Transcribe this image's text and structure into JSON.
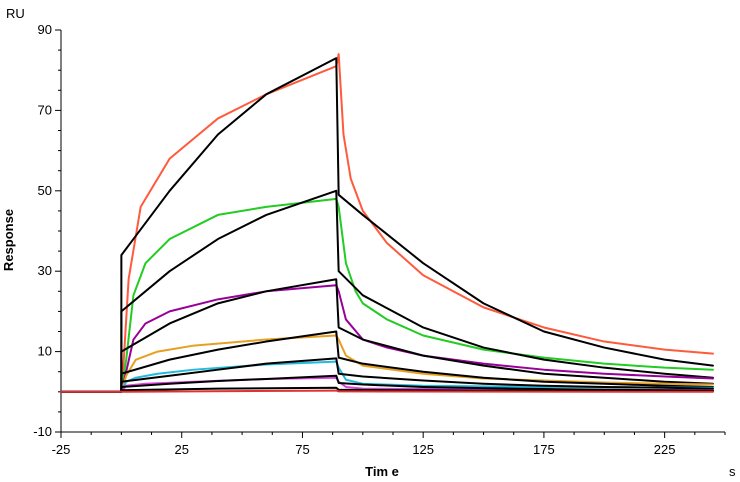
{
  "chart_data": {
    "type": "line",
    "title": "",
    "xlabel": "Tim e",
    "ylabel": "Response",
    "x_unit": "s",
    "y_unit": "RU",
    "xlim": [
      -25,
      250
    ],
    "ylim": [
      -10,
      90
    ],
    "x_ticks": [
      -25,
      25,
      75,
      125,
      175,
      225
    ],
    "y_ticks": [
      -10,
      10,
      30,
      50,
      70,
      90
    ],
    "grid": false,
    "legend": "none",
    "injection_start": 0,
    "injection_end": 90,
    "series": [
      {
        "color": "#ff5a3c",
        "values": [
          [
            -25,
            0
          ],
          [
            0,
            0
          ],
          [
            1,
            8
          ],
          [
            3,
            28
          ],
          [
            8,
            46
          ],
          [
            20,
            58
          ],
          [
            40,
            68
          ],
          [
            60,
            74
          ],
          [
            89,
            81
          ],
          [
            90,
            84
          ],
          [
            92,
            64
          ],
          [
            95,
            53
          ],
          [
            100,
            45
          ],
          [
            110,
            37
          ],
          [
            125,
            29
          ],
          [
            150,
            21
          ],
          [
            175,
            16
          ],
          [
            200,
            12.5
          ],
          [
            225,
            10.5
          ],
          [
            245,
            9.5
          ]
        ]
      },
      {
        "color": "#000000",
        "values": [
          [
            -25,
            0
          ],
          [
            0,
            0
          ],
          [
            0,
            34
          ],
          [
            20,
            50
          ],
          [
            40,
            64
          ],
          [
            60,
            74
          ],
          [
            89,
            83
          ],
          [
            90,
            49
          ],
          [
            100,
            44
          ],
          [
            125,
            32
          ],
          [
            150,
            22
          ],
          [
            175,
            15
          ],
          [
            200,
            11
          ],
          [
            225,
            8
          ],
          [
            245,
            6.5
          ]
        ]
      },
      {
        "color": "#22cc22",
        "values": [
          [
            -25,
            0
          ],
          [
            0,
            0
          ],
          [
            2,
            8
          ],
          [
            5,
            24
          ],
          [
            10,
            32
          ],
          [
            20,
            38
          ],
          [
            40,
            44
          ],
          [
            60,
            46
          ],
          [
            89,
            48
          ],
          [
            90,
            46
          ],
          [
            93,
            32
          ],
          [
            97,
            25
          ],
          [
            100,
            22
          ],
          [
            110,
            18
          ],
          [
            125,
            14
          ],
          [
            150,
            10.5
          ],
          [
            175,
            8.5
          ],
          [
            200,
            7
          ],
          [
            225,
            6
          ],
          [
            245,
            5.5
          ]
        ]
      },
      {
        "color": "#000000",
        "values": [
          [
            -25,
            0
          ],
          [
            0,
            0
          ],
          [
            0,
            20
          ],
          [
            20,
            30
          ],
          [
            40,
            38
          ],
          [
            60,
            44
          ],
          [
            89,
            50
          ],
          [
            90,
            30
          ],
          [
            100,
            24
          ],
          [
            125,
            16
          ],
          [
            150,
            11
          ],
          [
            175,
            8
          ],
          [
            200,
            6
          ],
          [
            225,
            4.5
          ],
          [
            245,
            3.5
          ]
        ]
      },
      {
        "color": "#990099",
        "values": [
          [
            -25,
            0
          ],
          [
            0,
            0
          ],
          [
            2,
            5
          ],
          [
            5,
            13
          ],
          [
            10,
            17
          ],
          [
            20,
            20
          ],
          [
            40,
            23
          ],
          [
            60,
            25
          ],
          [
            89,
            26.5
          ],
          [
            90,
            25
          ],
          [
            93,
            18
          ],
          [
            100,
            13
          ],
          [
            110,
            11
          ],
          [
            125,
            9
          ],
          [
            150,
            7
          ],
          [
            175,
            5.5
          ],
          [
            200,
            4.5
          ],
          [
            225,
            3.8
          ],
          [
            245,
            3.3
          ]
        ]
      },
      {
        "color": "#000000",
        "values": [
          [
            -25,
            0
          ],
          [
            0,
            0
          ],
          [
            0,
            10
          ],
          [
            20,
            17
          ],
          [
            40,
            22
          ],
          [
            60,
            25
          ],
          [
            89,
            28
          ],
          [
            90,
            16
          ],
          [
            100,
            13
          ],
          [
            125,
            9
          ],
          [
            150,
            6.5
          ],
          [
            175,
            4.5
          ],
          [
            200,
            3.5
          ],
          [
            225,
            2.5
          ],
          [
            245,
            2
          ]
        ]
      },
      {
        "color": "#e6a020",
        "values": [
          [
            -25,
            0
          ],
          [
            0,
            0
          ],
          [
            2,
            4
          ],
          [
            6,
            8
          ],
          [
            15,
            10
          ],
          [
            30,
            11.5
          ],
          [
            60,
            13
          ],
          [
            89,
            14
          ],
          [
            90,
            13
          ],
          [
            93,
            9
          ],
          [
            100,
            6.5
          ],
          [
            125,
            4.5
          ],
          [
            150,
            3.3
          ],
          [
            175,
            2.8
          ],
          [
            200,
            2.3
          ],
          [
            225,
            2
          ],
          [
            245,
            1.8
          ]
        ]
      },
      {
        "color": "#000000",
        "values": [
          [
            -25,
            0
          ],
          [
            0,
            0
          ],
          [
            0,
            4.5
          ],
          [
            20,
            8
          ],
          [
            40,
            10.5
          ],
          [
            60,
            12.5
          ],
          [
            89,
            15
          ],
          [
            90,
            8.5
          ],
          [
            100,
            7
          ],
          [
            125,
            5
          ],
          [
            150,
            3.5
          ],
          [
            175,
            2.5
          ],
          [
            200,
            2
          ],
          [
            225,
            1.5
          ],
          [
            245,
            1.2
          ]
        ]
      },
      {
        "color": "#22bbdd",
        "values": [
          [
            -25,
            0
          ],
          [
            0,
            0
          ],
          [
            2,
            2.5
          ],
          [
            6,
            3.5
          ],
          [
            15,
            4.5
          ],
          [
            30,
            5.5
          ],
          [
            60,
            6.8
          ],
          [
            89,
            7.5
          ],
          [
            90,
            6
          ],
          [
            93,
            3
          ],
          [
            100,
            2
          ],
          [
            125,
            1.5
          ],
          [
            175,
            1.2
          ],
          [
            245,
            1
          ]
        ]
      },
      {
        "color": "#000000",
        "values": [
          [
            -25,
            0
          ],
          [
            0,
            0
          ],
          [
            0,
            2.5
          ],
          [
            20,
            4
          ],
          [
            40,
            5.5
          ],
          [
            60,
            7
          ],
          [
            89,
            8.3
          ],
          [
            90,
            4.5
          ],
          [
            100,
            3.8
          ],
          [
            125,
            2.8
          ],
          [
            150,
            2
          ],
          [
            175,
            1.5
          ],
          [
            200,
            1.2
          ],
          [
            225,
            1
          ],
          [
            245,
            0.8
          ]
        ]
      },
      {
        "color": "#dd44dd",
        "values": [
          [
            -25,
            0
          ],
          [
            0,
            0
          ],
          [
            2,
            1.5
          ],
          [
            10,
            2
          ],
          [
            30,
            2.5
          ],
          [
            60,
            3.2
          ],
          [
            89,
            3.5
          ],
          [
            90,
            2.5
          ],
          [
            93,
            1.2
          ],
          [
            100,
            0.8
          ],
          [
            150,
            0.6
          ],
          [
            245,
            0.4
          ]
        ]
      },
      {
        "color": "#000000",
        "values": [
          [
            -25,
            0
          ],
          [
            0,
            0
          ],
          [
            0,
            1.2
          ],
          [
            20,
            2
          ],
          [
            40,
            2.7
          ],
          [
            60,
            3.2
          ],
          [
            89,
            4
          ],
          [
            90,
            2.2
          ],
          [
            100,
            1.8
          ],
          [
            125,
            1.2
          ],
          [
            150,
            0.9
          ],
          [
            175,
            0.7
          ],
          [
            200,
            0.5
          ],
          [
            225,
            0.4
          ],
          [
            245,
            0.3
          ]
        ]
      },
      {
        "color": "#000000",
        "values": [
          [
            -25,
            0
          ],
          [
            0,
            0
          ],
          [
            0,
            0.4
          ],
          [
            40,
            0.8
          ],
          [
            89,
            1
          ],
          [
            90,
            0.5
          ],
          [
            150,
            0.3
          ],
          [
            245,
            0.2
          ]
        ]
      },
      {
        "color": "#dd3333",
        "values": [
          [
            -25,
            0
          ],
          [
            0,
            0
          ],
          [
            89,
            0.3
          ],
          [
            90,
            0.1
          ],
          [
            245,
            0
          ]
        ]
      }
    ]
  }
}
